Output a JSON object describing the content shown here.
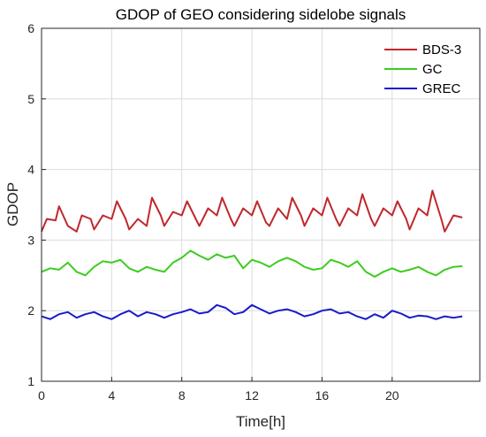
{
  "chart_data": {
    "type": "line",
    "title": "GDOP of GEO considering sidelobe signals",
    "xlabel": "Time[h]",
    "ylabel": "GDOP",
    "xlim": [
      0,
      25
    ],
    "ylim": [
      1,
      6
    ],
    "xticks": [
      0,
      4,
      8,
      12,
      16,
      20
    ],
    "yticks": [
      1,
      2,
      3,
      4,
      5,
      6
    ],
    "grid": true,
    "legend_position": "top-right",
    "series": [
      {
        "name": "BDS-3",
        "color": "#c0282d",
        "x": [
          0,
          0.3,
          0.8,
          1.0,
          1.5,
          2.0,
          2.3,
          2.8,
          3.0,
          3.5,
          4.0,
          4.3,
          4.8,
          5.0,
          5.5,
          6.0,
          6.3,
          6.8,
          7.0,
          7.5,
          8.0,
          8.3,
          8.8,
          9.0,
          9.5,
          10.0,
          10.3,
          10.8,
          11.0,
          11.5,
          12.0,
          12.3,
          12.8,
          13.0,
          13.5,
          14.0,
          14.3,
          14.8,
          15.0,
          15.5,
          16.0,
          16.3,
          16.8,
          17.0,
          17.5,
          18.0,
          18.3,
          18.8,
          19.0,
          19.5,
          20.0,
          20.3,
          20.8,
          21.0,
          21.5,
          22.0,
          22.3,
          22.8,
          23.0,
          23.5,
          24.0
        ],
        "values": [
          3.12,
          3.3,
          3.28,
          3.48,
          3.2,
          3.12,
          3.35,
          3.3,
          3.15,
          3.35,
          3.3,
          3.55,
          3.3,
          3.15,
          3.3,
          3.2,
          3.6,
          3.35,
          3.2,
          3.4,
          3.35,
          3.55,
          3.3,
          3.2,
          3.45,
          3.35,
          3.6,
          3.3,
          3.2,
          3.45,
          3.35,
          3.55,
          3.25,
          3.2,
          3.45,
          3.3,
          3.6,
          3.35,
          3.2,
          3.45,
          3.35,
          3.6,
          3.3,
          3.2,
          3.45,
          3.35,
          3.65,
          3.3,
          3.2,
          3.45,
          3.35,
          3.55,
          3.3,
          3.15,
          3.45,
          3.35,
          3.7,
          3.3,
          3.12,
          3.35,
          3.32
        ]
      },
      {
        "name": "GC",
        "color": "#3ccc1e",
        "x": [
          0,
          0.5,
          1.0,
          1.5,
          2.0,
          2.5,
          3.0,
          3.5,
          4.0,
          4.5,
          5.0,
          5.5,
          6.0,
          6.5,
          7.0,
          7.5,
          8.0,
          8.5,
          9.0,
          9.5,
          10.0,
          10.5,
          11.0,
          11.5,
          12.0,
          12.5,
          13.0,
          13.5,
          14.0,
          14.5,
          15.0,
          15.5,
          16.0,
          16.5,
          17.0,
          17.5,
          18.0,
          18.5,
          19.0,
          19.5,
          20.0,
          20.5,
          21.0,
          21.5,
          22.0,
          22.5,
          23.0,
          23.5,
          24.0
        ],
        "values": [
          2.55,
          2.6,
          2.58,
          2.68,
          2.55,
          2.5,
          2.62,
          2.7,
          2.68,
          2.72,
          2.6,
          2.55,
          2.62,
          2.58,
          2.55,
          2.68,
          2.75,
          2.85,
          2.78,
          2.72,
          2.8,
          2.75,
          2.78,
          2.6,
          2.72,
          2.68,
          2.62,
          2.7,
          2.75,
          2.7,
          2.62,
          2.58,
          2.6,
          2.72,
          2.68,
          2.62,
          2.7,
          2.55,
          2.48,
          2.55,
          2.6,
          2.55,
          2.58,
          2.62,
          2.55,
          2.5,
          2.58,
          2.62,
          2.63
        ]
      },
      {
        "name": "GREC",
        "color": "#1a1acc",
        "x": [
          0,
          0.5,
          1.0,
          1.5,
          2.0,
          2.5,
          3.0,
          3.5,
          4.0,
          4.5,
          5.0,
          5.5,
          6.0,
          6.5,
          7.0,
          7.5,
          8.0,
          8.5,
          9.0,
          9.5,
          10.0,
          10.5,
          11.0,
          11.5,
          12.0,
          12.5,
          13.0,
          13.5,
          14.0,
          14.5,
          15.0,
          15.5,
          16.0,
          16.5,
          17.0,
          17.5,
          18.0,
          18.5,
          19.0,
          19.5,
          20.0,
          20.5,
          21.0,
          21.5,
          22.0,
          22.5,
          23.0,
          23.5,
          24.0
        ],
        "values": [
          1.92,
          1.88,
          1.95,
          1.98,
          1.9,
          1.95,
          1.98,
          1.92,
          1.88,
          1.95,
          2.0,
          1.92,
          1.98,
          1.95,
          1.9,
          1.95,
          1.98,
          2.02,
          1.96,
          1.98,
          2.08,
          2.04,
          1.95,
          1.98,
          2.08,
          2.02,
          1.96,
          2.0,
          2.02,
          1.98,
          1.92,
          1.95,
          2.0,
          2.02,
          1.96,
          1.98,
          1.92,
          1.88,
          1.95,
          1.9,
          2.0,
          1.96,
          1.9,
          1.93,
          1.92,
          1.88,
          1.92,
          1.9,
          1.92
        ]
      }
    ]
  }
}
